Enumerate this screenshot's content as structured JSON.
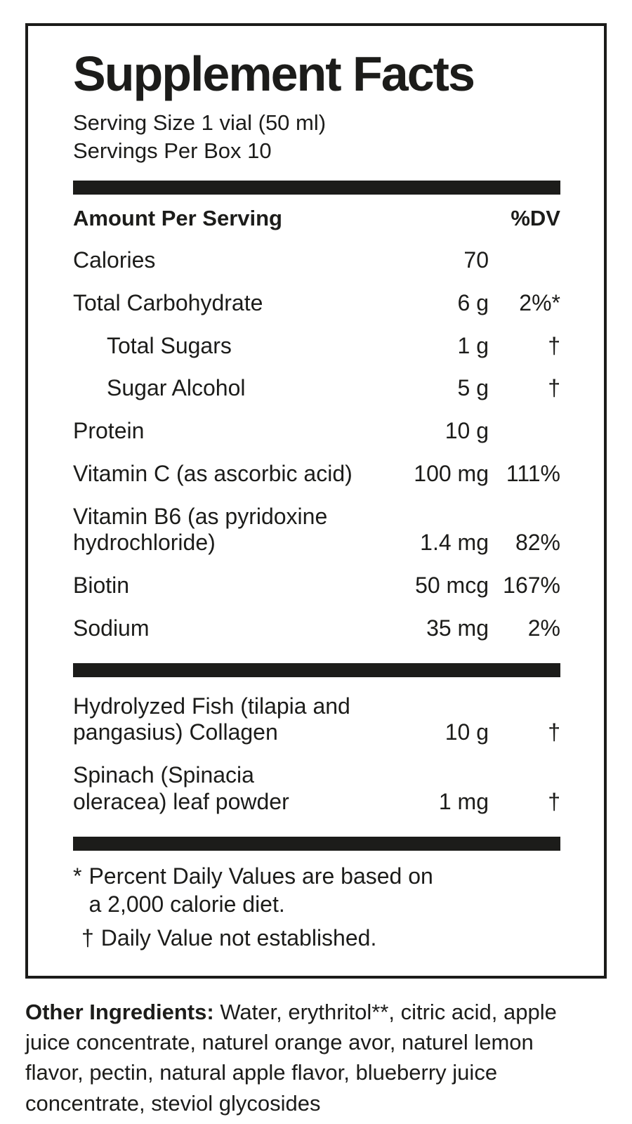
{
  "accent_color": "#1c1c1a",
  "supplement_facts": {
    "title": "Supplement Facts",
    "serving_size": "Serving Size 1 vial (50 ml)",
    "servings_per_box": "Servings Per Box 10",
    "columns": {
      "amount_header": "Amount Per Serving",
      "dv_header": "%DV"
    },
    "nutrients": [
      {
        "name": "Calories",
        "amount": "70",
        "dv": "",
        "indent": false
      },
      {
        "name": "Total Carbohydrate",
        "amount": "6 g",
        "dv": "2%*",
        "indent": false
      },
      {
        "name": "Total Sugars",
        "amount": "1 g",
        "dv": "†",
        "indent": true
      },
      {
        "name": "Sugar Alcohol",
        "amount": "5 g",
        "dv": "†",
        "indent": true
      },
      {
        "name": "Protein",
        "amount": "10 g",
        "dv": "",
        "indent": false
      },
      {
        "name": "Vitamin C (as ascorbic acid)",
        "amount": "100 mg",
        "dv": "111%",
        "indent": false
      },
      {
        "name": "Vitamin B6 (as pyridoxine\nhydrochloride)",
        "amount": "1.4 mg",
        "dv": "82%",
        "indent": false
      },
      {
        "name": "Biotin",
        "amount": "50 mcg",
        "dv": "167%",
        "indent": false
      },
      {
        "name": "Sodium",
        "amount": "35 mg",
        "dv": "2%",
        "indent": false
      }
    ],
    "botanicals": [
      {
        "name": "Hydrolyzed Fish (tilapia and\npangasius) Collagen",
        "amount": "10 g",
        "dv": "†",
        "indent": false
      },
      {
        "name": "Spinach (Spinacia\noleracea) leaf powder",
        "amount": "1 mg",
        "dv": "†",
        "indent": false
      }
    ],
    "footnotes": [
      {
        "symbol": "*",
        "text": "Percent Daily Values are based on\na 2,000 calorie diet."
      },
      {
        "symbol": "†",
        "text": "Daily Value not established."
      }
    ]
  },
  "other_ingredients": {
    "label": "Other Ingredients:",
    "text": " Water, erythritol**, citric acid, apple\njuice concentrate, naturel orange avor, naturel lemon\nflavor, pectin, natural apple flavor, blueberry juice\nconcentrate, steviol glycosides"
  }
}
